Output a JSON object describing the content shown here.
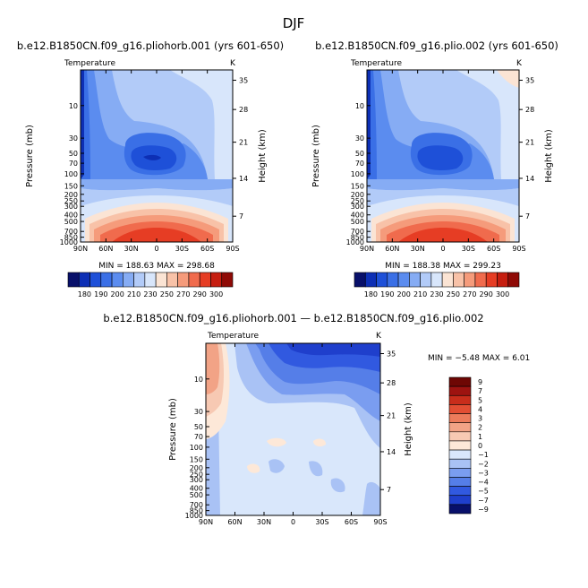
{
  "figure": {
    "title": "DJF"
  },
  "colors": {
    "panel_scale": [
      "#08106a",
      "#0d2fb5",
      "#1e50d8",
      "#3a6fe6",
      "#5b8cef",
      "#86acf4",
      "#b2cbf8",
      "#d8e6fb",
      "#fbe4d4",
      "#f8c2a8",
      "#f59b7b",
      "#f06b4d",
      "#e63d24",
      "#c61e10",
      "#8f0a06"
    ],
    "diff_scale": [
      "#08106a",
      "#1f3fcc",
      "#3159e0",
      "#557ee8",
      "#7a9df0",
      "#a9c2f5",
      "#d9e7fb",
      "#fde8d8",
      "#f7c9b3",
      "#f2a386",
      "#ec7b5b",
      "#e24e33",
      "#c82d1b",
      "#9e1310",
      "#6e0704"
    ]
  },
  "chart_data": [
    {
      "type": "contour",
      "id": "panel-left",
      "title": "b.e12.B1850CN.f09_g16.pliohorb.001 (yrs 601-650)",
      "variable": "Temperature",
      "units": "K",
      "ylabel": "Pressure (mb)",
      "ylabel_right": "Height (km)",
      "x_ticks": [
        "90N",
        "60N",
        "30N",
        "0",
        "30S",
        "60S",
        "90S"
      ],
      "y_ticks": [
        "10",
        "30",
        "50",
        "70",
        "100",
        "150",
        "200",
        "250",
        "300",
        "400",
        "500",
        "700",
        "850",
        "1000"
      ],
      "height_ticks": [
        "35",
        "28",
        "21",
        "14",
        "7"
      ],
      "ylim": [
        1000,
        3
      ],
      "stats": "MIN = 188.63   MAX = 298.68",
      "colorbar_labels": [
        "180",
        "190",
        "200",
        "210",
        "230",
        "250",
        "270",
        "290",
        "300"
      ],
      "levels": [
        180,
        185,
        190,
        195,
        200,
        205,
        210,
        220,
        230,
        240,
        250,
        260,
        270,
        280,
        290,
        300
      ]
    },
    {
      "type": "contour",
      "id": "panel-right",
      "title": "b.e12.B1850CN.f09_g16.plio.002 (yrs 601-650)",
      "variable": "Temperature",
      "units": "K",
      "ylabel": "Pressure (mb)",
      "ylabel_right": "Height (km)",
      "x_ticks": [
        "90N",
        "60N",
        "30N",
        "0",
        "30S",
        "60S",
        "90S"
      ],
      "y_ticks": [
        "10",
        "30",
        "50",
        "70",
        "100",
        "150",
        "200",
        "250",
        "300",
        "400",
        "500",
        "700",
        "850",
        "1000"
      ],
      "height_ticks": [
        "35",
        "28",
        "21",
        "14",
        "7"
      ],
      "ylim": [
        1000,
        3
      ],
      "stats": "MIN = 188.38   MAX = 299.23",
      "colorbar_labels": [
        "180",
        "190",
        "200",
        "210",
        "230",
        "250",
        "270",
        "290",
        "300"
      ],
      "levels": [
        180,
        185,
        190,
        195,
        200,
        205,
        210,
        220,
        230,
        240,
        250,
        260,
        270,
        280,
        290,
        300
      ]
    },
    {
      "type": "contour",
      "id": "panel-diff",
      "title": "b.e12.B1850CN.f09_g16.pliohorb.001 — b.e12.B1850CN.f09_g16.plio.002",
      "variable": "Temperature",
      "units": "K",
      "ylabel": "Pressure (mb)",
      "ylabel_right": "Height (km)",
      "x_ticks": [
        "90N",
        "60N",
        "30N",
        "0",
        "30S",
        "60S",
        "90S"
      ],
      "y_ticks": [
        "10",
        "30",
        "50",
        "70",
        "100",
        "150",
        "200",
        "250",
        "300",
        "400",
        "500",
        "700",
        "850",
        "1000"
      ],
      "height_ticks": [
        "35",
        "28",
        "21",
        "14",
        "7"
      ],
      "ylim": [
        1000,
        3
      ],
      "stats": "MIN =   −5.48   MAX =   6.01",
      "colorbar_labels": [
        "9",
        "7",
        "5",
        "4",
        "3",
        "2",
        "1",
        "0",
        "−1",
        "−2",
        "−3",
        "−4",
        "−5",
        "−7",
        "−9"
      ],
      "levels": [
        -9,
        -7,
        -5,
        -4,
        -3,
        -2,
        -1,
        0,
        1,
        2,
        3,
        4,
        5,
        7,
        9
      ]
    }
  ]
}
